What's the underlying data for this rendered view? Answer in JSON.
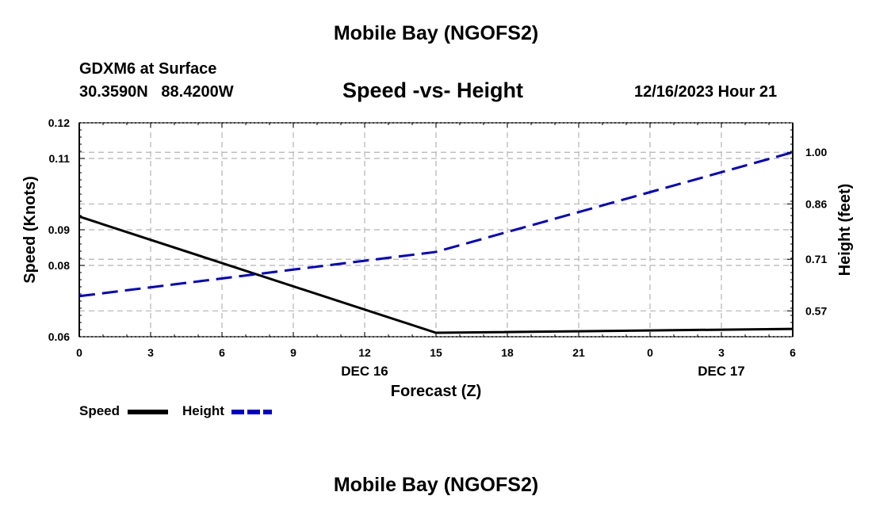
{
  "header": {
    "top_title": "Mobile Bay (NGOFS2)",
    "station": "GDXM6 at Surface",
    "coords": "30.3590N   88.4200W",
    "chart_title": "Speed -vs- Height",
    "datetime": "12/16/2023 Hour 21",
    "bottom_title": "Mobile Bay (NGOFS2)"
  },
  "colors": {
    "speed": "#000000",
    "height": "#0000cc",
    "grid": "#b4b4b4"
  },
  "chart_data": {
    "type": "line",
    "x": [
      0,
      3,
      6,
      9,
      12,
      15,
      18,
      21,
      24,
      27,
      30
    ],
    "x_tick_labels": [
      "0",
      "3",
      "6",
      "9",
      "12",
      "15",
      "18",
      "21",
      "0",
      "3",
      "6"
    ],
    "date_labels": [
      {
        "x": 12,
        "text": "DEC 16"
      },
      {
        "x": 27,
        "text": "DEC 17"
      }
    ],
    "xlabel": "Forecast (Z)",
    "xlim": [
      0,
      30
    ],
    "y_left": {
      "label": "Speed (Knots)",
      "lim": [
        0.06,
        0.12
      ],
      "ticks": [
        0.06,
        0.08,
        0.09,
        0.11,
        0.12
      ],
      "tick_labels": [
        "0.06",
        "0.08",
        "0.09",
        "0.11",
        "0.12"
      ]
    },
    "y_right": {
      "label": "Height (feet)",
      "lim": [
        0.5,
        1.08
      ],
      "ticks": [
        0.57,
        0.71,
        0.86,
        1.0
      ],
      "tick_labels": [
        "0.57",
        "0.71",
        "0.86",
        "1.00"
      ]
    },
    "grid": true,
    "series": [
      {
        "name": "Speed",
        "axis": "left",
        "x": [
          0,
          15,
          30
        ],
        "values": [
          0.0937,
          0.0611,
          0.0622
        ]
      },
      {
        "name": "Height",
        "axis": "right",
        "x": [
          0,
          15,
          30
        ],
        "values": [
          0.61,
          0.73,
          1.0
        ]
      }
    ],
    "legend": {
      "placement": "bottom-left"
    }
  }
}
